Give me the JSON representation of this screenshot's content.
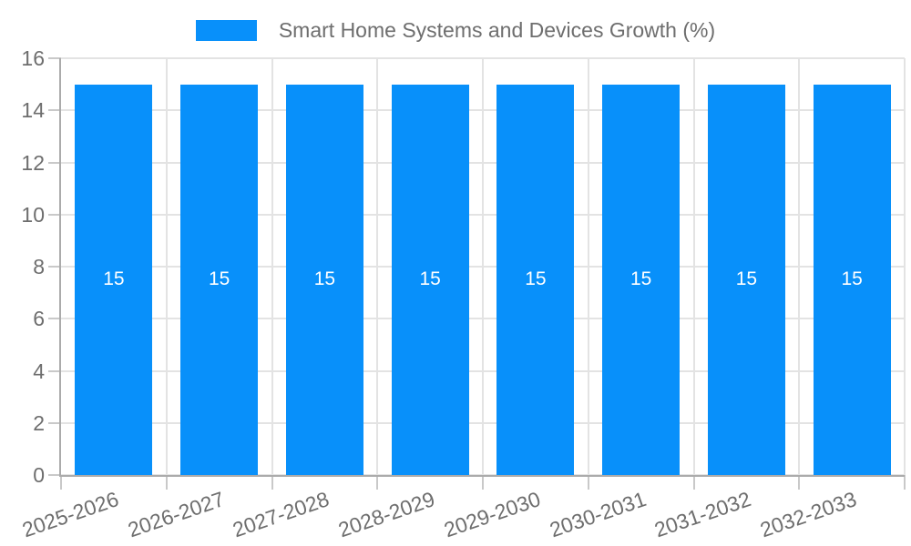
{
  "chart_data": {
    "type": "bar",
    "title": "Smart Home Systems and Devices Growth (%)",
    "categories": [
      "2025-2026",
      "2026-2027",
      "2027-2028",
      "2028-2029",
      "2029-2030",
      "2030-2031",
      "2031-2032",
      "2032-2033"
    ],
    "values": [
      15,
      15,
      15,
      15,
      15,
      15,
      15,
      15
    ],
    "series": [
      {
        "name": "Smart Home Systems and Devices Growth (%)",
        "values": [
          15,
          15,
          15,
          15,
          15,
          15,
          15,
          15
        ]
      }
    ],
    "xlabel": "",
    "ylabel": "",
    "ylim": [
      0,
      16
    ],
    "yticks": [
      0,
      2,
      4,
      6,
      8,
      10,
      12,
      14,
      16
    ],
    "grid": true,
    "legend_position": "top-center",
    "x_tick_rotation_deg": -19,
    "colors": {
      "bar": "#0890fa",
      "bar_value_text": "#ffffff",
      "axis_line": "#ababab",
      "gridline": "#e3e3e3",
      "tick_mark": "#c9c9c9",
      "tick_text": "#6e6e6e",
      "legend_text": "#6e6e6e",
      "background": "#ffffff"
    }
  }
}
